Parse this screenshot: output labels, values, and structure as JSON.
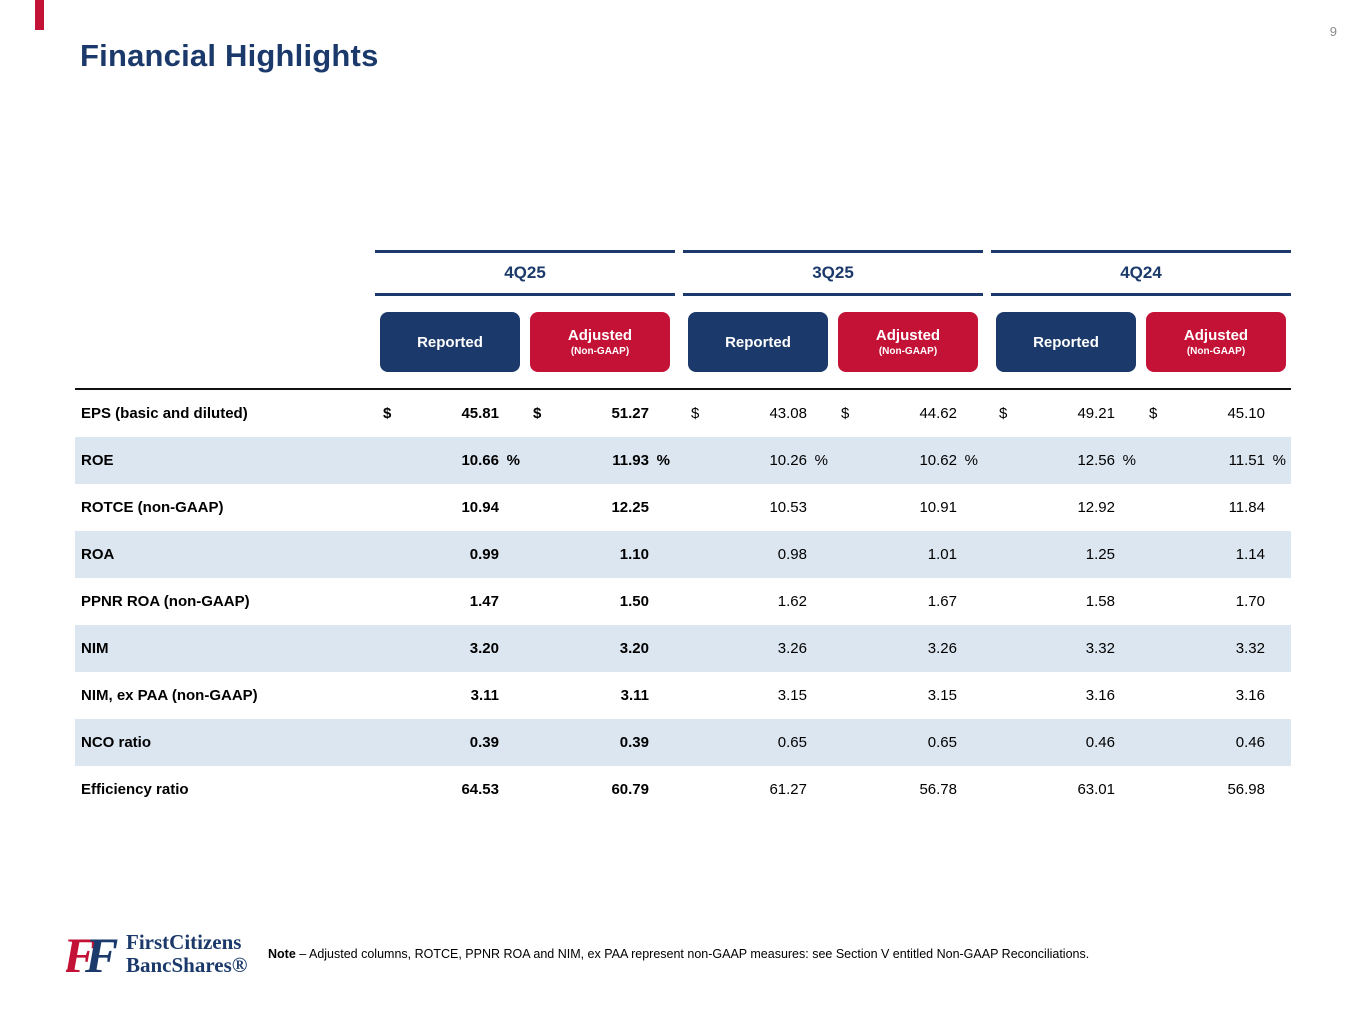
{
  "page": {
    "number": "9",
    "title": "Financial Highlights"
  },
  "table": {
    "currency_symbol": "$",
    "percent_symbol": "%",
    "period_groups": [
      {
        "label": "4Q25"
      },
      {
        "label": "3Q25"
      },
      {
        "label": "4Q24"
      }
    ],
    "column_headers": {
      "reported": "Reported",
      "adjusted": "Adjusted",
      "adjusted_sub": "(Non-GAAP)"
    },
    "rows": [
      {
        "label": "EPS (basic and diluted)",
        "dollar": true,
        "percent": false,
        "shaded": false,
        "values": [
          "45.81",
          "51.27",
          "43.08",
          "44.62",
          "49.21",
          "45.10"
        ]
      },
      {
        "label": "ROE",
        "dollar": false,
        "percent": true,
        "shaded": true,
        "values": [
          "10.66",
          "11.93",
          "10.26",
          "10.62",
          "12.56",
          "11.51"
        ]
      },
      {
        "label": "ROTCE (non-GAAP)",
        "dollar": false,
        "percent": false,
        "shaded": false,
        "values": [
          "10.94",
          "12.25",
          "10.53",
          "10.91",
          "12.92",
          "11.84"
        ]
      },
      {
        "label": "ROA",
        "dollar": false,
        "percent": false,
        "shaded": true,
        "values": [
          "0.99",
          "1.10",
          "0.98",
          "1.01",
          "1.25",
          "1.14"
        ]
      },
      {
        "label": "PPNR ROA (non-GAAP)",
        "dollar": false,
        "percent": false,
        "shaded": false,
        "values": [
          "1.47",
          "1.50",
          "1.62",
          "1.67",
          "1.58",
          "1.70"
        ]
      },
      {
        "label": "NIM",
        "dollar": false,
        "percent": false,
        "shaded": true,
        "values": [
          "3.20",
          "3.20",
          "3.26",
          "3.26",
          "3.32",
          "3.32"
        ]
      },
      {
        "label": "NIM, ex PAA (non-GAAP)",
        "dollar": false,
        "percent": false,
        "shaded": false,
        "values": [
          "3.11",
          "3.11",
          "3.15",
          "3.15",
          "3.16",
          "3.16"
        ]
      },
      {
        "label": "NCO ratio",
        "dollar": false,
        "percent": false,
        "shaded": true,
        "values": [
          "0.39",
          "0.39",
          "0.65",
          "0.65",
          "0.46",
          "0.46"
        ]
      },
      {
        "label": "Efficiency ratio",
        "dollar": false,
        "percent": false,
        "shaded": false,
        "values": [
          "64.53",
          "60.79",
          "61.27",
          "56.78",
          "63.01",
          "56.98"
        ]
      }
    ]
  },
  "footer": {
    "logo": {
      "line1": "FirstCitizens",
      "line2": "BancShares®",
      "monogram_letters": [
        "F",
        "F"
      ]
    },
    "note_label": "Note",
    "note_text": " – Adjusted columns, ROTCE, PPNR ROA and NIM, ex PAA represent non-GAAP measures: see Section V entitled Non-GAAP Reconciliations."
  },
  "colors": {
    "navy": "#1b3a6b",
    "red": "#c41237",
    "row_shade": "#dce6f0"
  }
}
